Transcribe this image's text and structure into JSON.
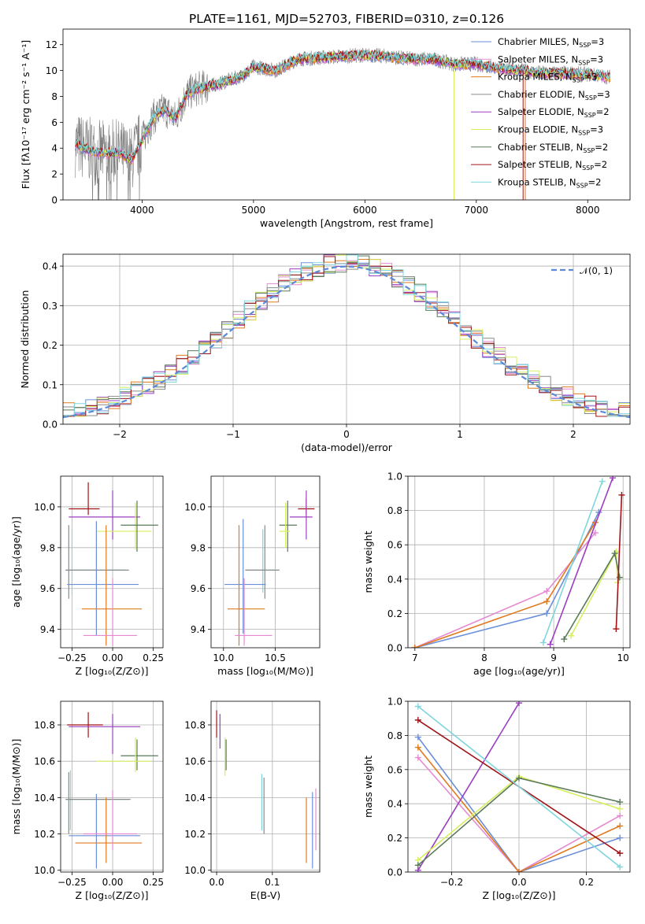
{
  "figure_title": "PLATE=1161, MJD=52703, FIBERID=0310, z=0.126",
  "colors": {
    "chabrier_miles": "#6b8fd8",
    "salpeter_miles": "#e58ad1",
    "kroupa_miles": "#e07a1f",
    "chabrier_elodie": "#8a8a8a",
    "salpeter_elodie": "#9b3fc0",
    "kroupa_elodie": "#d7ef5e",
    "chabrier_stelib": "#5a7a5a",
    "salpeter_stelib": "#a01418",
    "kroupa_stelib": "#7fd6dc",
    "gaussian": "#5b8ad6"
  },
  "legend_spectrum": [
    {
      "key": "chabrier_miles",
      "pre": "Chabrier MILES, N",
      "sub": "SSP",
      "post": "=3"
    },
    {
      "key": "salpeter_miles",
      "pre": "Salpeter MILES, N",
      "sub": "SSP",
      "post": "=3"
    },
    {
      "key": "kroupa_miles",
      "pre": "Kroupa MILES, N",
      "sub": "SSP",
      "post": "=3"
    },
    {
      "key": "chabrier_elodie",
      "pre": "Chabrier ELODIE, N",
      "sub": "SSP",
      "post": "=3"
    },
    {
      "key": "salpeter_elodie",
      "pre": "Salpeter ELODIE, N",
      "sub": "SSP",
      "post": "=2"
    },
    {
      "key": "kroupa_elodie",
      "pre": "Kroupa ELODIE, N",
      "sub": "SSP",
      "post": "=3"
    },
    {
      "key": "chabrier_stelib",
      "pre": "Chabrier STELIB, N",
      "sub": "SSP",
      "post": "=2"
    },
    {
      "key": "salpeter_stelib",
      "pre": "Salpeter STELIB, N",
      "sub": "SSP",
      "post": "=2"
    },
    {
      "key": "kroupa_stelib",
      "pre": "Kroupa STELIB, N",
      "sub": "SSP",
      "post": "=2"
    }
  ],
  "chart_data": [
    {
      "id": "spectrum",
      "type": "line",
      "xlabel": "wavelength [Angstrom, rest frame]",
      "ylabel": "Flux [fλ10⁻¹⁷ erg cm⁻² s⁻¹ A⁻¹]",
      "xlim": [
        3290,
        8380
      ],
      "ylim": [
        0,
        13.2
      ],
      "xticks": [
        4000,
        5000,
        6000,
        7000,
        8000
      ],
      "yticks": [
        0,
        2,
        4,
        6,
        8,
        10,
        12
      ],
      "observed_color": "#808080",
      "model_anchor": {
        "x": [
          3400,
          3600,
          3800,
          3900,
          4000,
          4100,
          4200,
          4300,
          4400,
          4500,
          4700,
          4900,
          5000,
          5200,
          5400,
          5600,
          5800,
          6000,
          6200,
          6400,
          6600,
          6800,
          7000,
          7200,
          7400,
          7600,
          7800,
          8000,
          8200
        ],
        "y": [
          4.3,
          3.6,
          3.7,
          3.1,
          4.6,
          6.4,
          7.0,
          6.3,
          8.2,
          8.6,
          9.0,
          9.6,
          10.3,
          10.0,
          10.9,
          11.0,
          11.1,
          11.2,
          11.1,
          10.9,
          10.9,
          10.5,
          10.5,
          10.2,
          10.0,
          9.8,
          9.8,
          9.7,
          9.5
        ]
      },
      "model_series": [
        "chabrier_miles",
        "salpeter_miles",
        "kroupa_miles",
        "salpeter_elodie",
        "kroupa_elodie",
        "chabrier_stelib",
        "salpeter_stelib",
        "kroupa_stelib"
      ]
    },
    {
      "id": "residuals",
      "type": "line",
      "xlabel": "(data-model)/error",
      "ylabel": "Normed distribution",
      "xlim": [
        -2.5,
        2.5
      ],
      "ylim": [
        0,
        0.43
      ],
      "xticks": [
        -2,
        -1,
        0,
        1,
        2
      ],
      "yticks": [
        0.0,
        0.1,
        0.2,
        0.3,
        0.4
      ],
      "gaussian_label": "𝒩(0, 1)",
      "histogram_series": [
        "chabrier_miles",
        "salpeter_miles",
        "kroupa_miles",
        "chabrier_elodie",
        "salpeter_elodie",
        "kroupa_elodie",
        "chabrier_stelib",
        "salpeter_stelib",
        "kroupa_stelib"
      ]
    },
    {
      "id": "age_vs_Z",
      "type": "scatter",
      "xlabel": "Z [log₁₀(Z/Z⊙)]",
      "ylabel": "age  [log₁₀(age/yr)]",
      "xlim": [
        -0.32,
        0.31
      ],
      "ylim": [
        9.31,
        10.15
      ],
      "xticks": [
        -0.25,
        0.0,
        0.25
      ],
      "yticks": [
        9.4,
        9.6,
        9.8,
        10.0
      ],
      "points": [
        {
          "key": "salpeter_stelib",
          "x": -0.15,
          "y": 9.99,
          "xe": [
            -0.27,
            -0.08
          ],
          "ye": [
            9.96,
            10.12
          ]
        },
        {
          "key": "salpeter_elodie",
          "x": 0.0,
          "y": 9.95,
          "xe": [
            -0.27,
            0.17
          ],
          "ye": [
            9.84,
            10.08
          ]
        },
        {
          "key": "kroupa_elodie",
          "x": 0.14,
          "y": 9.88,
          "xe": [
            -0.1,
            0.24
          ],
          "ye": [
            9.79,
            10.02
          ]
        },
        {
          "key": "chabrier_stelib",
          "x": 0.15,
          "y": 9.91,
          "xe": [
            0.05,
            0.28
          ],
          "ye": [
            9.78,
            10.03
          ]
        },
        {
          "key": "kroupa_stelib",
          "x": -0.25,
          "y": 9.69,
          "xe": [
            -0.29,
            0.08
          ],
          "ye": [
            9.57,
            9.89
          ]
        },
        {
          "key": "chabrier_elodie",
          "x": -0.27,
          "y": 9.69,
          "xe": [
            -0.29,
            0.1
          ],
          "ye": [
            9.55,
            9.91
          ]
        },
        {
          "key": "chabrier_miles",
          "x": -0.1,
          "y": 9.62,
          "xe": [
            -0.28,
            0.16
          ],
          "ye": [
            9.37,
            9.93
          ]
        },
        {
          "key": "kroupa_miles",
          "x": -0.04,
          "y": 9.5,
          "xe": [
            -0.19,
            0.18
          ],
          "ye": [
            9.32,
            9.91
          ]
        },
        {
          "key": "salpeter_miles",
          "x": 0.0,
          "y": 9.37,
          "xe": [
            -0.18,
            0.15
          ],
          "ye": [
            9.32,
            9.65
          ]
        }
      ]
    },
    {
      "id": "age_vs_mass",
      "type": "scatter",
      "xlabel": "mass [log₁₀(M/M⊙)]",
      "ylabel": "",
      "xlim": [
        9.88,
        10.93
      ],
      "ylim": [
        9.31,
        10.15
      ],
      "xticks": [
        10.0,
        10.5
      ],
      "yticks": [
        9.4,
        9.6,
        9.8,
        10.0
      ],
      "points": [
        {
          "key": "salpeter_stelib",
          "x": 10.8,
          "y": 9.99,
          "xe": [
            10.72,
            10.88
          ],
          "ye": [
            9.96,
            10.04
          ]
        },
        {
          "key": "salpeter_elodie",
          "x": 10.8,
          "y": 9.95,
          "xe": [
            10.64,
            10.86
          ],
          "ye": [
            9.84,
            10.08
          ]
        },
        {
          "key": "chabrier_stelib",
          "x": 10.62,
          "y": 9.91,
          "xe": [
            10.54,
            10.71
          ],
          "ye": [
            9.78,
            10.03
          ]
        },
        {
          "key": "kroupa_elodie",
          "x": 10.6,
          "y": 9.88,
          "xe": [
            10.54,
            10.64
          ],
          "ye": [
            9.8,
            10.02
          ]
        },
        {
          "key": "kroupa_stelib",
          "x": 10.38,
          "y": 9.69,
          "xe": [
            10.22,
            10.54
          ],
          "ye": [
            9.58,
            9.89
          ]
        },
        {
          "key": "chabrier_elodie",
          "x": 10.4,
          "y": 9.69,
          "xe": [
            10.21,
            10.54
          ],
          "ye": [
            9.55,
            9.91
          ]
        },
        {
          "key": "chabrier_miles",
          "x": 10.19,
          "y": 9.62,
          "xe": [
            10.01,
            10.41
          ],
          "ye": [
            9.38,
            9.94
          ]
        },
        {
          "key": "kroupa_miles",
          "x": 10.15,
          "y": 9.5,
          "xe": [
            10.04,
            10.4
          ],
          "ye": [
            9.32,
            9.91
          ]
        },
        {
          "key": "salpeter_miles",
          "x": 10.2,
          "y": 9.37,
          "xe": [
            10.11,
            10.47
          ],
          "ye": [
            9.32,
            9.65
          ]
        }
      ]
    },
    {
      "id": "mass_weight_vs_age",
      "type": "line",
      "xlabel": "age  [log₁₀(age/yr)]",
      "ylabel": "mass weight",
      "xlim": [
        6.9,
        10.1
      ],
      "ylim": [
        0,
        1.0
      ],
      "xticks": [
        7,
        8,
        9,
        10
      ],
      "yticks": [
        0.0,
        0.2,
        0.4,
        0.6,
        0.8,
        1.0
      ],
      "series": [
        {
          "key": "chabrier_miles",
          "x": [
            7.0,
            8.9,
            9.65
          ],
          "y": [
            0.0,
            0.2,
            0.79
          ]
        },
        {
          "key": "salpeter_miles",
          "x": [
            7.0,
            8.9,
            9.6
          ],
          "y": [
            0.0,
            0.33,
            0.67
          ]
        },
        {
          "key": "kroupa_miles",
          "x": [
            7.0,
            8.9,
            9.6
          ],
          "y": [
            0.0,
            0.27,
            0.73
          ]
        },
        {
          "key": "salpeter_elodie",
          "x": [
            8.95,
            9.85
          ],
          "y": [
            0.02,
            0.99
          ]
        },
        {
          "key": "kroupa_elodie",
          "x": [
            9.25,
            9.9,
            9.92
          ],
          "y": [
            0.07,
            0.56,
            0.38
          ]
        },
        {
          "key": "chabrier_stelib",
          "x": [
            9.15,
            9.88,
            9.95
          ],
          "y": [
            0.05,
            0.55,
            0.41
          ]
        },
        {
          "key": "salpeter_stelib",
          "x": [
            9.9,
            9.98
          ],
          "y": [
            0.11,
            0.89
          ]
        },
        {
          "key": "kroupa_stelib",
          "x": [
            8.85,
            9.7
          ],
          "y": [
            0.03,
            0.97
          ]
        }
      ]
    },
    {
      "id": "mass_vs_Z",
      "type": "scatter",
      "xlabel": "Z [log₁₀(Z/Z⊙)]",
      "ylabel": "mass [log₁₀(M/M⊙)]",
      "xlim": [
        -0.32,
        0.31
      ],
      "ylim": [
        9.99,
        10.93
      ],
      "xticks": [
        -0.25,
        0.0,
        0.25
      ],
      "yticks": [
        10.0,
        10.2,
        10.4,
        10.6,
        10.8
      ],
      "points": [
        {
          "key": "salpeter_stelib",
          "x": -0.15,
          "y": 10.8,
          "xe": [
            -0.28,
            -0.06
          ],
          "ye": [
            10.73,
            10.87
          ]
        },
        {
          "key": "salpeter_elodie",
          "x": 0.0,
          "y": 10.79,
          "xe": [
            -0.27,
            0.17
          ],
          "ye": [
            10.64,
            10.86
          ]
        },
        {
          "key": "chabrier_stelib",
          "x": 0.15,
          "y": 10.63,
          "xe": [
            0.05,
            0.28
          ],
          "ye": [
            10.55,
            10.72
          ]
        },
        {
          "key": "kroupa_elodie",
          "x": 0.14,
          "y": 10.6,
          "xe": [
            -0.1,
            0.24
          ],
          "ye": [
            10.54,
            10.73
          ]
        },
        {
          "key": "kroupa_stelib",
          "x": -0.26,
          "y": 10.39,
          "xe": [
            -0.29,
            0.1
          ],
          "ye": [
            10.22,
            10.55
          ]
        },
        {
          "key": "chabrier_elodie",
          "x": -0.27,
          "y": 10.39,
          "xe": [
            -0.29,
            0.11
          ],
          "ye": [
            10.2,
            10.54
          ]
        },
        {
          "key": "chabrier_miles",
          "x": -0.1,
          "y": 10.19,
          "xe": [
            -0.27,
            0.17
          ],
          "ye": [
            10.01,
            10.42
          ]
        },
        {
          "key": "kroupa_miles",
          "x": -0.04,
          "y": 10.15,
          "xe": [
            -0.23,
            0.18
          ],
          "ye": [
            10.04,
            10.4
          ]
        },
        {
          "key": "salpeter_miles",
          "x": 0.0,
          "y": 10.2,
          "xe": [
            -0.18,
            0.15
          ],
          "ye": [
            10.11,
            10.44
          ]
        }
      ]
    },
    {
      "id": "mass_vs_ebv",
      "type": "scatter",
      "xlabel": "E(B-V)",
      "ylabel": "",
      "xlim": [
        -0.01,
        0.185
      ],
      "ylim": [
        9.99,
        10.93
      ],
      "xticks": [
        0.0,
        0.1
      ],
      "yticks": [
        10.0,
        10.2,
        10.4,
        10.6,
        10.8
      ],
      "points": [
        {
          "key": "salpeter_stelib",
          "x": 0.0,
          "y": 10.8,
          "ye": [
            10.73,
            10.88
          ]
        },
        {
          "key": "salpeter_elodie",
          "x": 0.006,
          "y": 10.79,
          "ye": [
            10.67,
            10.86
          ]
        },
        {
          "key": "kroupa_elodie",
          "x": 0.015,
          "y": 10.6,
          "ye": [
            10.52,
            10.73
          ]
        },
        {
          "key": "chabrier_stelib",
          "x": 0.017,
          "y": 10.63,
          "ye": [
            10.55,
            10.72
          ]
        },
        {
          "key": "kroupa_stelib",
          "x": 0.081,
          "y": 10.39,
          "ye": [
            10.22,
            10.53
          ]
        },
        {
          "key": "chabrier_elodie",
          "x": 0.085,
          "y": 10.39,
          "ye": [
            10.2,
            10.51
          ]
        },
        {
          "key": "kroupa_miles",
          "x": 0.161,
          "y": 10.15,
          "ye": [
            10.04,
            10.4
          ]
        },
        {
          "key": "chabrier_miles",
          "x": 0.172,
          "y": 10.19,
          "ye": [
            10.01,
            10.43
          ]
        },
        {
          "key": "salpeter_miles",
          "x": 0.178,
          "y": 10.2,
          "ye": [
            10.11,
            10.45
          ]
        }
      ]
    },
    {
      "id": "mass_weight_vs_Z",
      "type": "line",
      "xlabel": "Z [log₁₀(Z/Z⊙)]",
      "ylabel": "mass weight",
      "xlim": [
        -0.33,
        0.33
      ],
      "ylim": [
        0,
        1.0
      ],
      "xticks": [
        -0.2,
        0.0,
        0.2
      ],
      "yticks": [
        0.0,
        0.2,
        0.4,
        0.6,
        0.8,
        1.0
      ],
      "series": [
        {
          "key": "chabrier_miles",
          "x": [
            -0.3,
            0.0,
            0.3
          ],
          "y": [
            0.79,
            0.0,
            0.2
          ]
        },
        {
          "key": "salpeter_miles",
          "x": [
            -0.3,
            0.0,
            0.3
          ],
          "y": [
            0.67,
            0.0,
            0.33
          ]
        },
        {
          "key": "kroupa_miles",
          "x": [
            -0.3,
            0.0,
            0.3
          ],
          "y": [
            0.73,
            0.0,
            0.27
          ]
        },
        {
          "key": "salpeter_elodie",
          "x": [
            -0.3,
            0.0
          ],
          "y": [
            0.01,
            0.99
          ]
        },
        {
          "key": "kroupa_elodie",
          "x": [
            -0.3,
            0.0,
            0.3
          ],
          "y": [
            0.07,
            0.56,
            0.37
          ]
        },
        {
          "key": "chabrier_stelib",
          "x": [
            -0.3,
            0.0,
            0.3
          ],
          "y": [
            0.04,
            0.55,
            0.41
          ]
        },
        {
          "key": "salpeter_stelib",
          "x": [
            -0.3,
            0.3
          ],
          "y": [
            0.89,
            0.11
          ]
        },
        {
          "key": "kroupa_stelib",
          "x": [
            -0.3,
            0.3
          ],
          "y": [
            0.97,
            0.03
          ]
        }
      ]
    }
  ]
}
